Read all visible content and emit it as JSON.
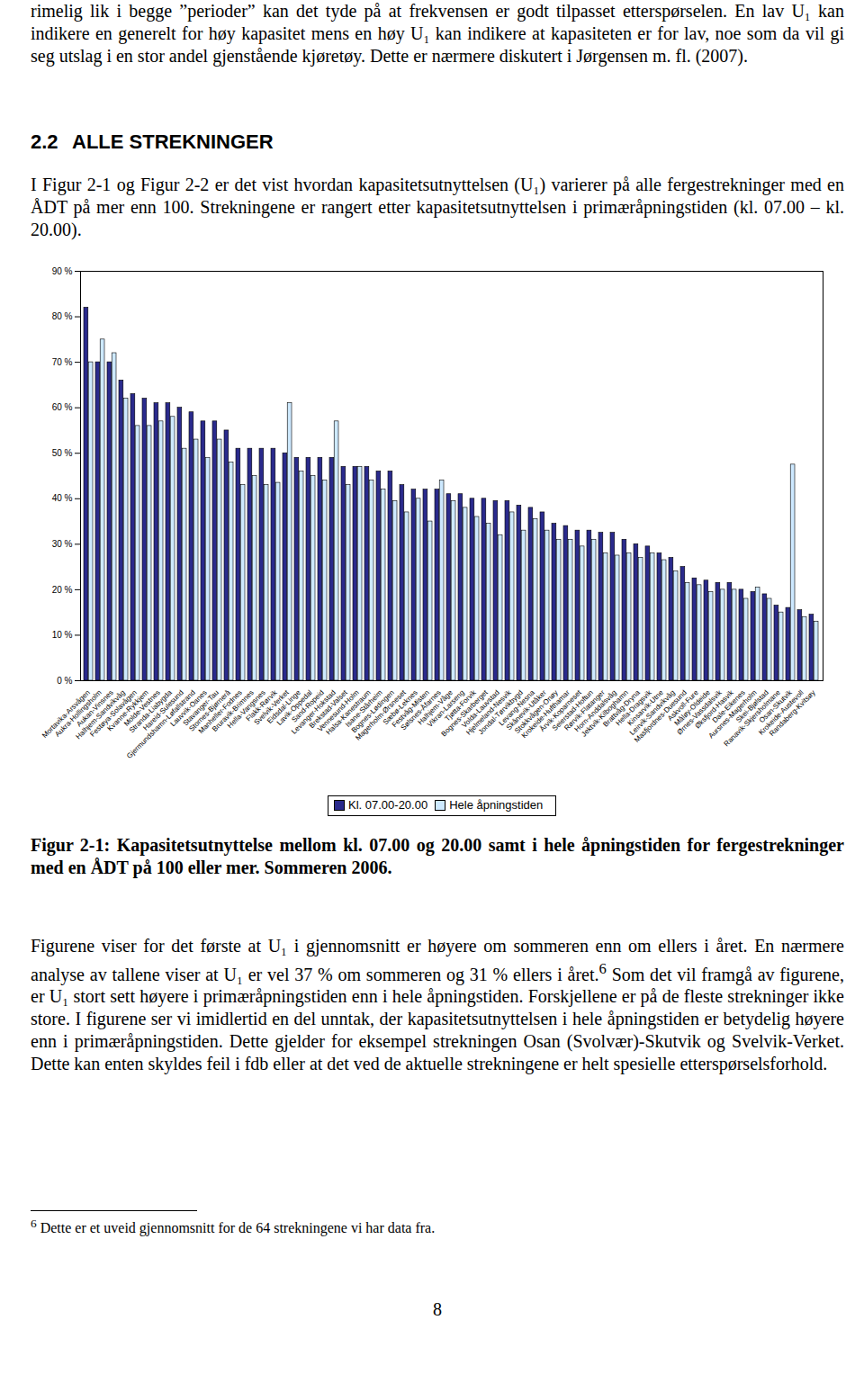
{
  "paragraph_1": "rimelig lik i begge ”perioder” kan det tyde på at frekvensen er godt tilpasset etterspørselen. En lav U₁ kan indikere en generelt for høy kapasitet mens en høy U₁ kan indikere at kapasiteten er for lav, noe som da vil gi seg utslag i en stor andel gjenstående kjøretøy. Dette er nærmere diskutert i Jørgensen m. fl. (2007).",
  "section": {
    "number": "2.2",
    "title": "ALLE STREKNINGER"
  },
  "paragraph_2": "I Figur 2-1 og Figur 2-2 er det vist hvordan kapasitetsutnyttelsen (U₁) varierer på alle fergestrekninger med en ÅDT på mer enn 100. Strekningene er rangert etter kapasitetsutnyttelsen i primæråpningstiden (kl. 07.00 – kl. 20.00).",
  "chart_data": {
    "type": "bar",
    "categories": [
      "Mortavika-Arsvågen",
      "Aukra-Hollingsholm",
      "Aukan-Vinsnes",
      "Halhjem-Sandvikvåg",
      "Festøya-Solavågen",
      "Kvanne-Rykkjem",
      "Molde-Vestnes",
      "Stranda-Liabygda",
      "Hareid-Sulesund",
      "Gjermundshamn-Løfallstrand",
      "Lauvvik-Oanes",
      "Stavanger-Tau",
      "Stornes-Bjørnerå",
      "Manheller-Fodnes",
      "Bruravik-Brimnes",
      "Hella-Vangsnes",
      "Flakk-Rørvik",
      "Svelvik-Verket",
      "Eidsdal-Linge",
      "Lavik-Oppedal",
      "Sand-Ropeid",
      "Levanger-Hokstad",
      "Brekstad-Valset",
      "Vennesund-Holm",
      "Halsa-Kanestraum",
      "Isane-Stårheim",
      "Bognes-Lødingen",
      "Magerholm-Ørsneset",
      "Sæbø-Leknes",
      "Festvåg-Misten",
      "Sølsnes-Åfarnes",
      "Halhjem-Våge",
      "Vikran-Larseng",
      "Tjøtta-Forvik",
      "Bognes-Skarberget",
      "Volda-Lauvstad",
      "Hjelmeland-Nesvik",
      "Jondal-Tørvikbygd",
      "Levang-Nesna",
      "Skånevik-Utåker",
      "Stokkvågen-Onøy",
      "Krokeide-Hufthamar",
      "Årvik-Koparneset",
      "Seierstad-Hoftun",
      "Rørvik-Flatanger",
      "Horn-Anddalsvåg",
      "Jektvik-Kilboghamn",
      "Brattvåg-Dryna",
      "Hella-Dragsvik",
      "Kinsarvik-Utne",
      "Leirvik-Sandvikvåg",
      "Masfjordnes-Duesund",
      "Askvoll-Fure",
      "Måløy-Oldeide",
      "Ørnes-Vassdalsvik",
      "Øksfjord-Hasvik",
      "Dale-Eikenes",
      "Aursnes-Magerholm",
      "Skei-Bjølstad",
      "Ranavik-Skjersholmane",
      "Osan-Skutvik",
      "Krokeide-Austevoll",
      "Randaberg-Kvitsøy"
    ],
    "series": [
      {
        "name": "Kl. 07.00-20.00",
        "color": "#2a2a8c",
        "values": [
          82,
          70,
          70,
          66,
          63,
          62,
          61,
          61,
          60,
          59,
          57,
          57,
          55,
          51,
          51,
          51,
          51,
          50,
          49,
          49,
          49,
          49,
          47,
          47,
          47,
          46,
          46,
          43,
          42,
          42,
          42,
          41,
          41,
          40,
          40,
          39.5,
          39.5,
          38.5,
          38,
          37,
          34.5,
          34,
          33,
          33,
          32.5,
          32.5,
          31,
          30,
          29.5,
          28,
          27,
          25,
          22.5,
          22,
          21.5,
          21.5,
          20,
          19.5,
          19,
          16.5,
          16,
          15.5,
          14.5
        ]
      },
      {
        "name": "Hele åpningstiden",
        "color": "#cde9ff",
        "values": [
          70,
          75,
          72,
          62,
          56,
          56,
          57,
          58,
          51,
          53,
          49,
          53,
          48,
          43,
          45,
          43,
          43.5,
          61,
          46,
          45,
          44,
          57,
          43,
          47,
          44,
          42,
          39.5,
          37,
          40,
          35,
          44,
          39.5,
          38,
          36,
          34.5,
          32,
          37,
          33,
          35.5,
          33,
          31,
          31,
          29.5,
          31,
          28,
          27.5,
          28,
          27,
          28,
          26.5,
          24,
          21.5,
          21,
          19.5,
          20,
          20,
          18,
          20.5,
          18,
          15,
          47.5,
          14,
          13
        ]
      }
    ],
    "ylim": [
      0,
      90
    ],
    "yticks": [
      {
        "value": 0,
        "label": "0 %"
      },
      {
        "value": 10,
        "label": "10 %"
      },
      {
        "value": 20,
        "label": "20 %"
      },
      {
        "value": 30,
        "label": "30 %"
      },
      {
        "value": 40,
        "label": "40 %"
      },
      {
        "value": 50,
        "label": "50 %"
      },
      {
        "value": 60,
        "label": "60 %"
      },
      {
        "value": 70,
        "label": "70 %"
      },
      {
        "value": 80,
        "label": "80 %"
      },
      {
        "value": 90,
        "label": "90 %"
      }
    ],
    "grid": false,
    "legend": "bottom"
  },
  "caption": "Figur 2-1: Kapasitetsutnyttelse mellom kl. 07.00 og 20.00 samt i hele åpningstiden for fergestrekninger med en ÅDT på 100 eller mer. Sommeren 2006.",
  "paragraph_3": {
    "before": "Figurene viser for det første at U₁ i gjennomsnitt er høyere om sommeren enn om ellers i året. En nærmere analyse av tallene viser at U₁ er vel 37 % om sommeren og 31 % ellers i året.",
    "ref": "6",
    "after": " Som det vil framgå av figurene, er U₁ stort sett høyere i primæråpningstiden enn i hele åpningstiden. Forskjellene er på de fleste strekninger ikke store. I figurene ser vi imidlertid en del unntak, der kapasitetsutnyttelsen i hele åpningstiden er betydelig høyere enn i primæråpningstiden. Dette gjelder for eksempel strekningen Osan (Svolvær)-Skutvik og Svelvik-Verket. Dette kan enten skyldes feil i fdb eller at det ved de aktuelle strekningene er helt spesielle etterspørselsforhold."
  },
  "footnote": {
    "number": "6",
    "text": "Dette er et uveid gjennomsnitt for de 64 strekningene vi har data fra."
  },
  "page_number": "8"
}
